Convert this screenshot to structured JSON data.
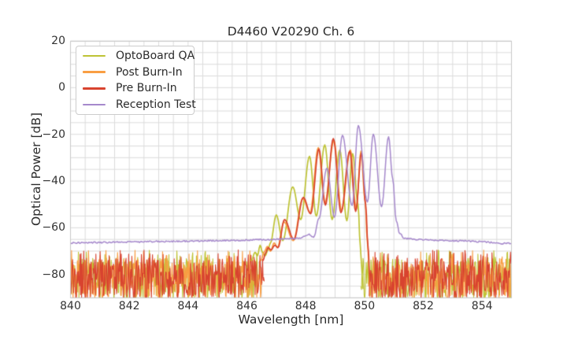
{
  "figure": {
    "title": "D4460 V20290 Ch. 6"
  },
  "axes": {
    "xlabel": "Wavelength [nm]",
    "ylabel": "Optical Power [dB]",
    "xticks": {
      "values": [
        840,
        842,
        844,
        846,
        848,
        850,
        852,
        854
      ],
      "labels": [
        "840",
        "842",
        "844",
        "846",
        "848",
        "850",
        "852",
        "854"
      ]
    },
    "yticks": {
      "values": [
        20,
        0,
        -20,
        -40,
        -60,
        -80
      ],
      "labels": [
        "20",
        "0",
        "−20",
        "−40",
        "−60",
        "−80"
      ]
    },
    "xlim": [
      840,
      855
    ],
    "ylim": [
      -90,
      20
    ],
    "grid": {
      "x_step_nm": 0.5,
      "y_step_db": 5,
      "color": "#dcdcdc",
      "spine_color": "#c9c9c9"
    }
  },
  "legend": {
    "items": [
      {
        "label": "OptoBoard QA",
        "color": "#bec335"
      },
      {
        "label": "Post Burn-In",
        "color": "#f99e42"
      },
      {
        "label": "Pre Burn-In",
        "color": "#d8432f"
      },
      {
        "label": "Reception Test",
        "color": "#a689cc"
      }
    ]
  },
  "chart_data": {
    "type": "line",
    "title": "D4460 V20290 Ch. 6",
    "xlabel": "Wavelength [nm]",
    "ylabel": "Optical Power [dB]",
    "xlim": [
      840,
      855
    ],
    "ylim": [
      -90,
      20
    ],
    "grid": true,
    "legend_position": "upper left",
    "noise": {
      "top_db": -73,
      "spread_db": 18,
      "spike_chance": 0.06,
      "spike_max_db": 3.5,
      "step_nm": 0.018,
      "seed": 11
    },
    "series": [
      {
        "name": "OptoBoard QA",
        "color": "#bec335",
        "linewidth": 1.7,
        "noise_ranges": [
          [
            840.0,
            846.4
          ],
          [
            849.88,
            855.0
          ]
        ],
        "points": [
          [
            846.15,
            -74
          ],
          [
            846.28,
            -70.5
          ],
          [
            846.36,
            -72
          ],
          [
            846.45,
            -67.5
          ],
          [
            846.53,
            -70.5
          ],
          [
            846.62,
            -72
          ],
          [
            846.72,
            -69.5
          ],
          [
            846.8,
            -66.5
          ],
          [
            847.0,
            -54.5
          ],
          [
            847.22,
            -65.5
          ],
          [
            847.56,
            -42.5
          ],
          [
            847.83,
            -56.5
          ],
          [
            848.13,
            -29.4
          ],
          [
            848.36,
            -55
          ],
          [
            848.65,
            -24.5
          ],
          [
            848.9,
            -56.5
          ],
          [
            849.16,
            -26.7
          ],
          [
            849.4,
            -57
          ],
          [
            849.6,
            -28.3
          ],
          [
            849.78,
            -50
          ],
          [
            849.86,
            -68
          ],
          [
            849.91,
            -78
          ],
          [
            849.95,
            -86
          ]
        ]
      },
      {
        "name": "Post Burn-In",
        "color": "#f99e42",
        "linewidth": 1.7,
        "noise_ranges": [
          [
            840.0,
            846.52
          ],
          [
            850.13,
            855.0
          ]
        ],
        "points": [
          [
            846.48,
            -74
          ],
          [
            846.58,
            -70.5
          ],
          [
            846.7,
            -68
          ],
          [
            846.8,
            -70
          ],
          [
            846.93,
            -66.5
          ],
          [
            847.04,
            -68.5
          ],
          [
            847.26,
            -57.5
          ],
          [
            847.58,
            -65.5
          ],
          [
            847.9,
            -47.5
          ],
          [
            848.15,
            -53.5
          ],
          [
            848.43,
            -25.7
          ],
          [
            848.65,
            -49.5
          ],
          [
            848.96,
            -22.7
          ],
          [
            849.22,
            -52.5
          ],
          [
            849.52,
            -26.7
          ],
          [
            849.72,
            -52
          ],
          [
            849.88,
            -27.2
          ],
          [
            850.02,
            -48
          ],
          [
            850.1,
            -66
          ],
          [
            850.17,
            -81
          ]
        ]
      },
      {
        "name": "Pre Burn-In",
        "color": "#d8432f",
        "linewidth": 1.7,
        "noise_ranges": [
          [
            840.0,
            846.6
          ],
          [
            850.16,
            855.0
          ]
        ],
        "points": [
          [
            846.55,
            -74
          ],
          [
            846.63,
            -71
          ],
          [
            846.72,
            -68.5
          ],
          [
            846.82,
            -69.5
          ],
          [
            846.95,
            -67.5
          ],
          [
            847.06,
            -68.5
          ],
          [
            847.28,
            -56.5
          ],
          [
            847.6,
            -65
          ],
          [
            847.92,
            -47
          ],
          [
            848.17,
            -54
          ],
          [
            848.45,
            -26.3
          ],
          [
            848.67,
            -50.3
          ],
          [
            848.94,
            -21.8
          ],
          [
            849.2,
            -53.5
          ],
          [
            849.5,
            -27.2
          ],
          [
            849.7,
            -53
          ],
          [
            849.9,
            -28
          ],
          [
            850.04,
            -50
          ],
          [
            850.12,
            -68
          ],
          [
            850.19,
            -83
          ]
        ]
      },
      {
        "name": "Reception Test",
        "color": "#a689cc",
        "linewidth": 1.5,
        "jitter_db": 0.3,
        "noise_ranges": [],
        "points": [
          [
            840.0,
            -66.5
          ],
          [
            841.0,
            -66.3
          ],
          [
            842.0,
            -66.1
          ],
          [
            843.0,
            -65.9
          ],
          [
            844.0,
            -65.7
          ],
          [
            845.0,
            -65.5
          ],
          [
            846.0,
            -65.3
          ],
          [
            846.6,
            -65.1
          ],
          [
            847.1,
            -64.9
          ],
          [
            847.5,
            -64.7
          ],
          [
            847.78,
            -64.3
          ],
          [
            847.95,
            -63.9
          ],
          [
            848.09,
            -62.8
          ],
          [
            848.27,
            -64.2
          ],
          [
            848.45,
            -56
          ],
          [
            848.72,
            -34.5
          ],
          [
            848.98,
            -55.5
          ],
          [
            849.25,
            -20.4
          ],
          [
            849.58,
            -50.5
          ],
          [
            849.79,
            -16.2
          ],
          [
            850.1,
            -49
          ],
          [
            850.3,
            -19.9
          ],
          [
            850.58,
            -51
          ],
          [
            850.82,
            -21
          ],
          [
            850.96,
            -39
          ],
          [
            851.08,
            -57
          ],
          [
            851.2,
            -62.5
          ],
          [
            851.35,
            -64.6
          ],
          [
            851.7,
            -65.0
          ],
          [
            852.5,
            -65.4
          ],
          [
            853.2,
            -65.6
          ],
          [
            853.9,
            -65.9
          ],
          [
            854.4,
            -66.3
          ],
          [
            854.65,
            -66.9
          ],
          [
            854.85,
            -66.5
          ],
          [
            855.0,
            -66.6
          ]
        ]
      }
    ]
  }
}
